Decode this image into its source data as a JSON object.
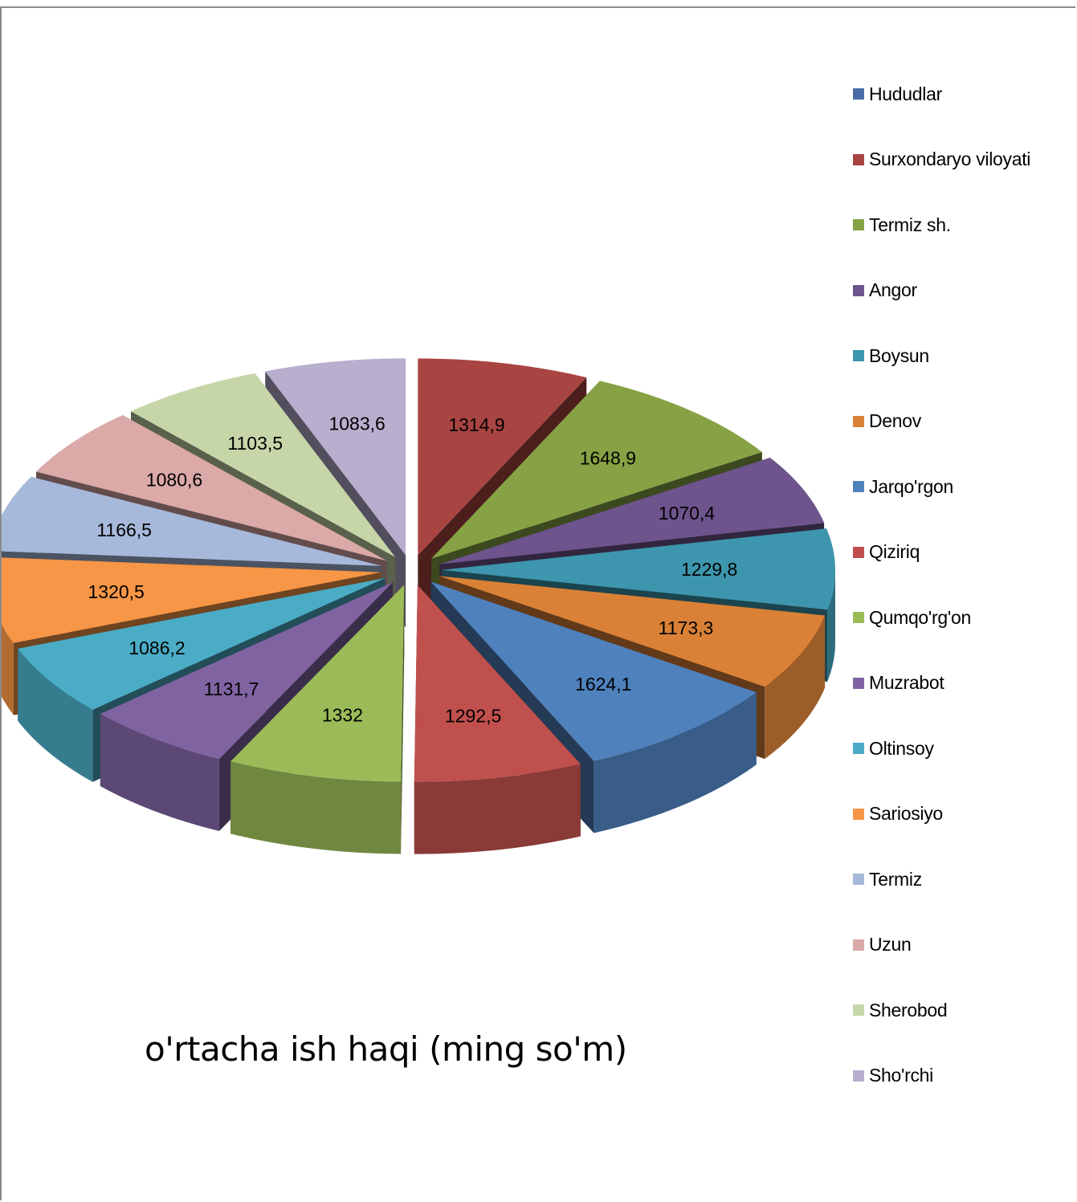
{
  "chart_data": {
    "type": "pie",
    "style": "3d-exploded",
    "title": "o'rtacha ish haqi (ming so'm)",
    "legend_position": "right",
    "categories": [
      "Hududlar",
      "Surxondaryo viloyati",
      "Termiz sh.",
      "Angor",
      "Boysun",
      "Denov",
      "Jarqo'rgon",
      "Qiziriq",
      "Qumqo'rg'on",
      "Muzrabot",
      "Oltinsoy",
      "Sariosiyo",
      "Termiz",
      "Uzun",
      "Sherobod",
      "Sho'rchi"
    ],
    "values": [
      null,
      1314.9,
      1648.9,
      1070.4,
      1229.8,
      1173.3,
      1624.1,
      1292.5,
      1332,
      1131.7,
      1086.2,
      1320.5,
      1166.5,
      1080.6,
      1103.5,
      1083.6
    ],
    "data_labels": [
      "",
      "1314,9",
      "1648,9",
      "1070,4",
      "1229,8",
      "1173,3",
      "1624,1",
      "1292,5",
      "1332",
      "1131,7",
      "1086,2",
      "1320,5",
      "1166,5",
      "1080,6",
      "1103,5",
      "1083,6"
    ],
    "colors": [
      "#4a6da7",
      "#a84441",
      "#86a244",
      "#6e548d",
      "#3d96ad",
      "#da8137",
      "#4f81bd",
      "#c0504d",
      "#9bbb59",
      "#8064a2",
      "#4bacc6",
      "#f79646",
      "#a7b9da",
      "#daa9a8",
      "#c6d6a8",
      "#b8aece"
    ]
  }
}
